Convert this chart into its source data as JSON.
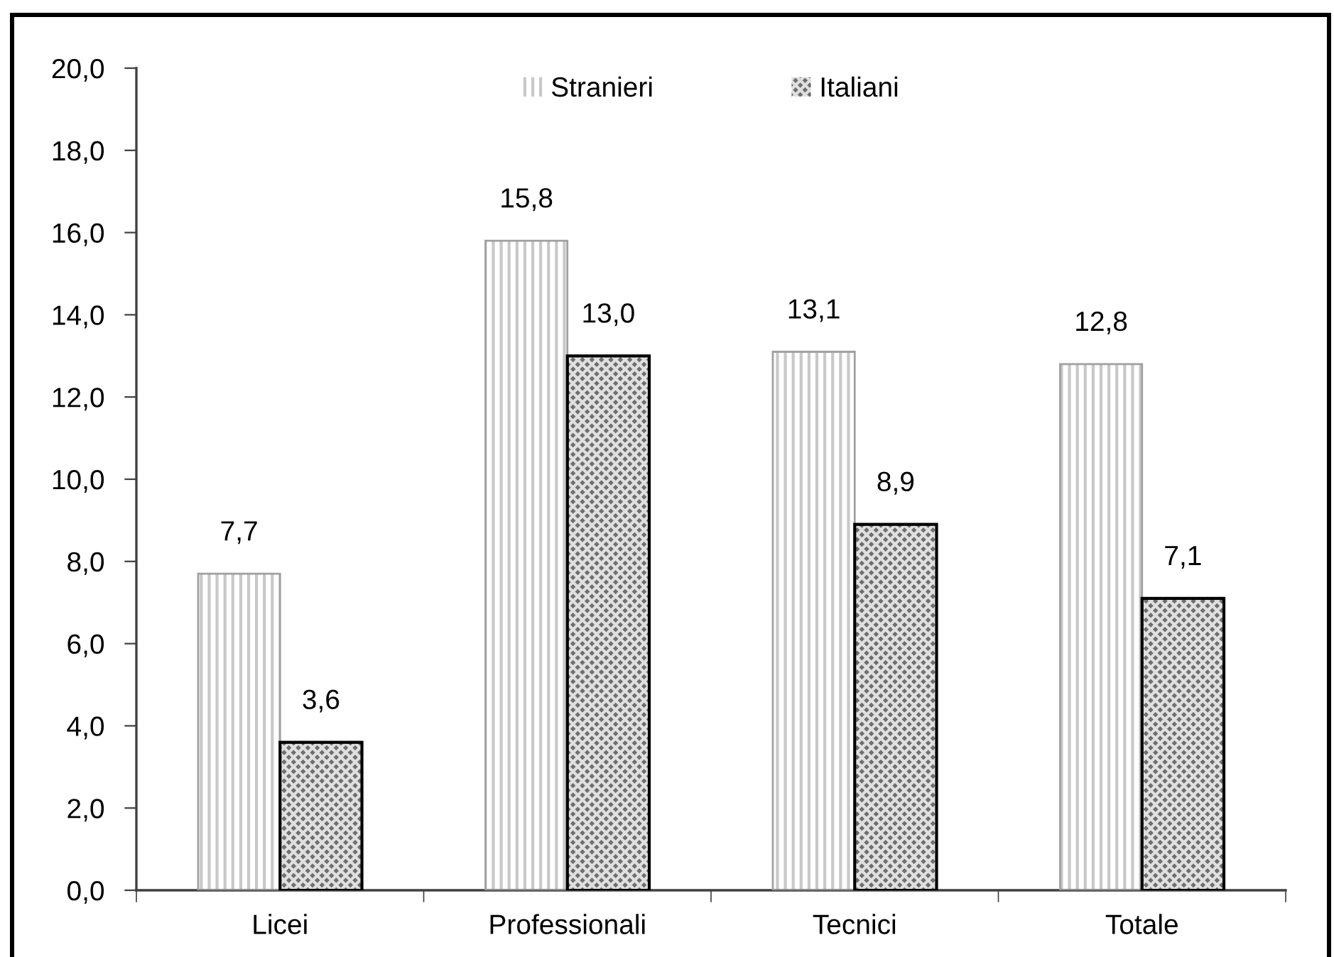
{
  "chart_data": {
    "type": "bar",
    "categories": [
      "Licei",
      "Professionali",
      "Tecnici",
      "Totale"
    ],
    "series": [
      {
        "name": "Stranieri",
        "color": "#ffffff",
        "values": [
          7.7,
          15.8,
          13.1,
          12.8
        ],
        "value_labels": [
          "7,7",
          "15,8",
          "13,1",
          "12,8"
        ]
      },
      {
        "name": "Italiani",
        "color": "#6f6f6f",
        "values": [
          3.6,
          13.0,
          8.9,
          7.1
        ],
        "value_labels": [
          "3,6",
          "13,0",
          "8,9",
          "7,1"
        ]
      }
    ],
    "ylim": [
      0,
      20
    ],
    "yticks": [
      {
        "value": 0,
        "label": "0,0"
      },
      {
        "value": 2,
        "label": "2,0"
      },
      {
        "value": 4,
        "label": "4,0"
      },
      {
        "value": 6,
        "label": "6,0"
      },
      {
        "value": 8,
        "label": "8,0"
      },
      {
        "value": 10,
        "label": "10,0"
      },
      {
        "value": 12,
        "label": "12,0"
      },
      {
        "value": 14,
        "label": "14,0"
      },
      {
        "value": 16,
        "label": "16,0"
      },
      {
        "value": 18,
        "label": "18,0"
      },
      {
        "value": 20,
        "label": "20,0"
      }
    ],
    "grid": false,
    "legend": "top"
  }
}
